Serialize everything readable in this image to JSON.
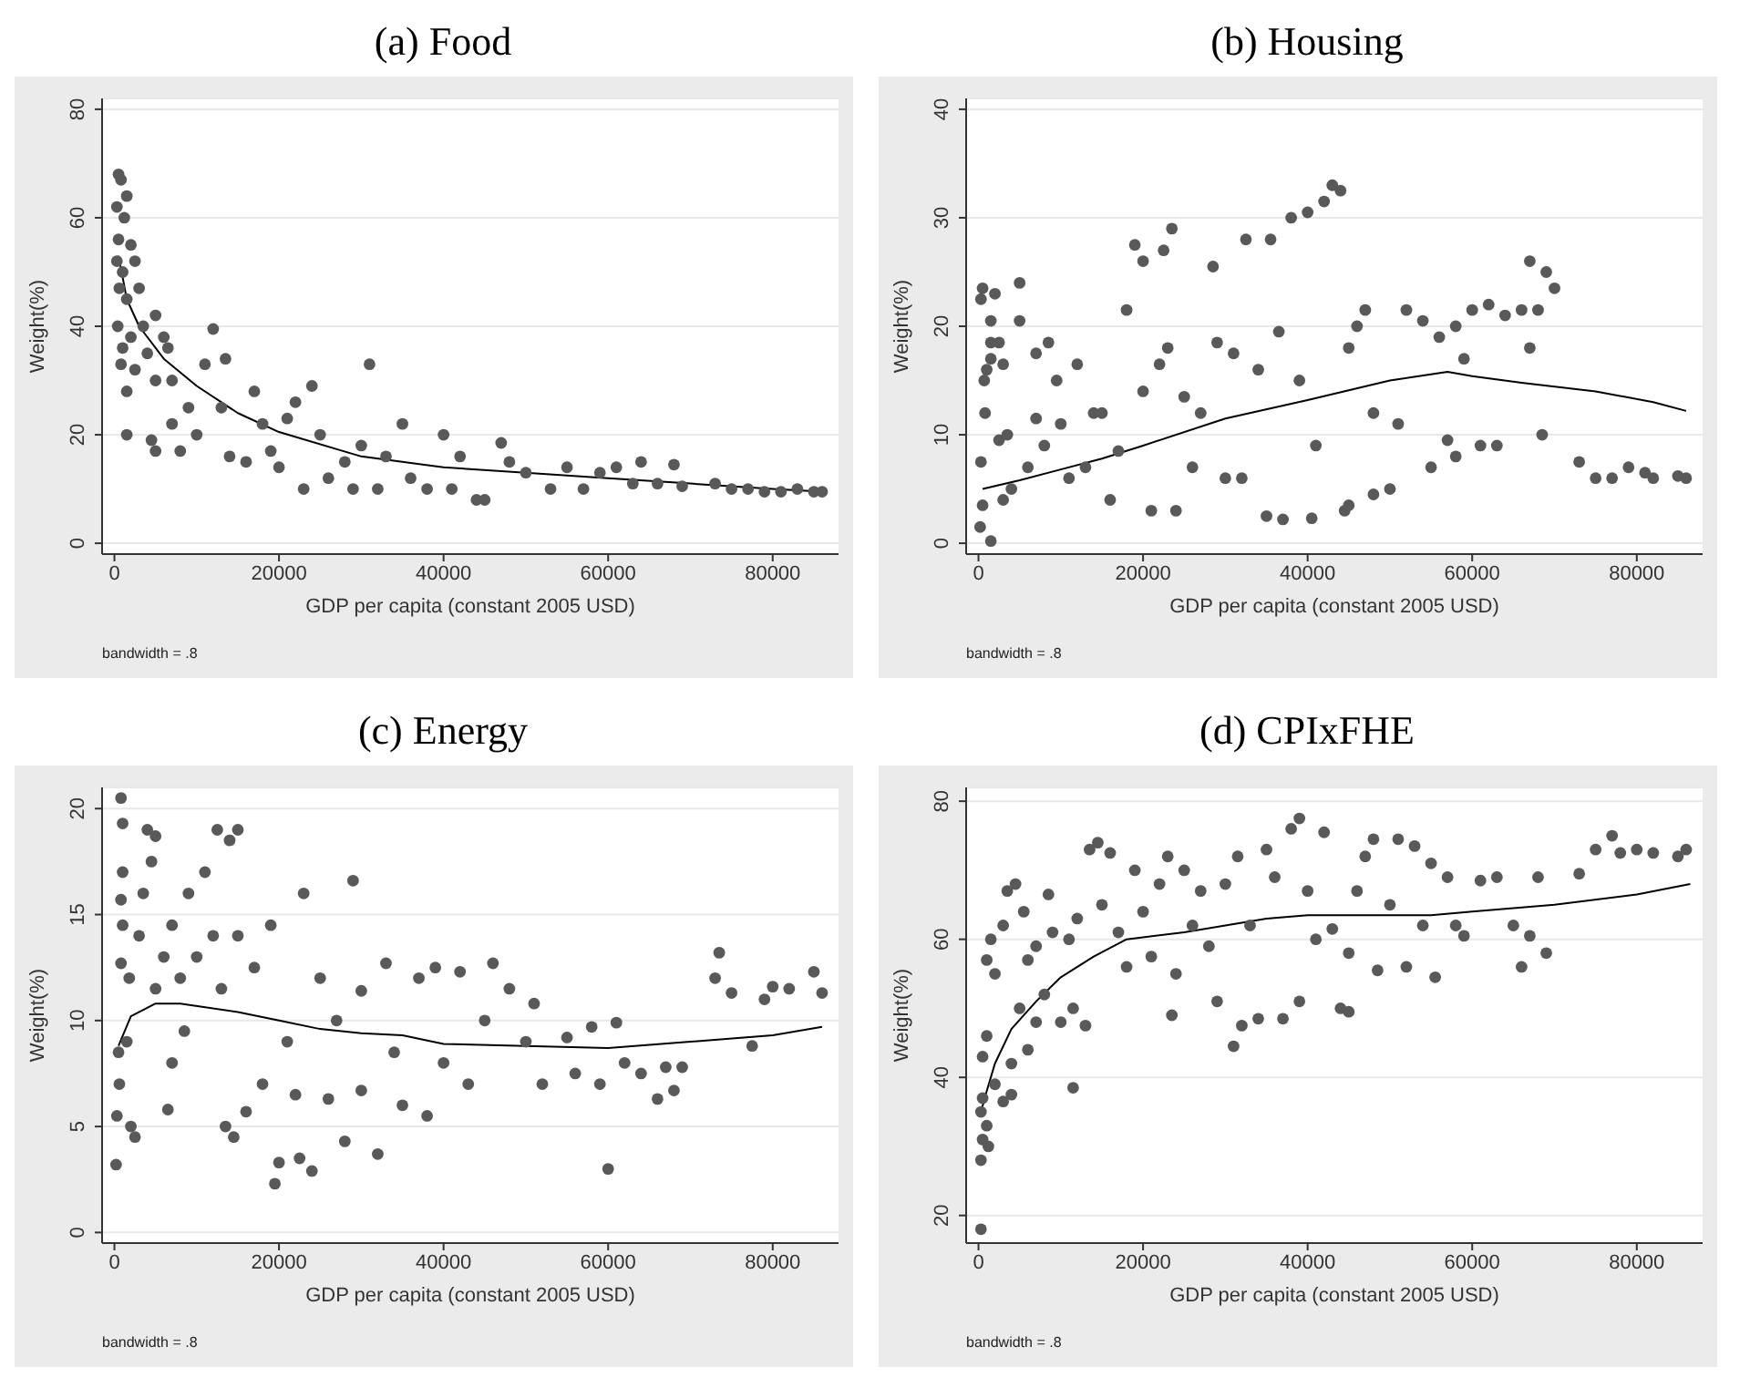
{
  "chart_data": [
    {
      "type": "scatter",
      "title": "(a) Food",
      "xlabel": "GDP per capita (constant 2005 USD)",
      "ylabel": "Weight(%)",
      "xlim": [
        -1500,
        88000
      ],
      "ylim": [
        -2,
        82
      ],
      "xticks": [
        0,
        20000,
        40000,
        60000,
        80000
      ],
      "yticks": [
        0,
        20,
        40,
        60,
        80
      ],
      "grid": "y",
      "annotations": [
        "bandwidth = .8"
      ],
      "series": [
        {
          "type": "scatter",
          "marker": "circle",
          "color": "#595959",
          "x": [
            500,
            800,
            300,
            1500,
            1200,
            500,
            2000,
            300,
            1000,
            2500,
            600,
            1500,
            3000,
            400,
            1000,
            2000,
            800,
            1500,
            1500,
            2500,
            3500,
            4000,
            5000,
            5000,
            6000,
            6500,
            7000,
            4500,
            5000,
            7000,
            8000,
            9000,
            10000,
            11000,
            12000,
            13000,
            13500,
            14000,
            16000,
            17000,
            18000,
            19000,
            20000,
            21000,
            22000,
            23000,
            24000,
            25000,
            26000,
            28000,
            29000,
            30000,
            31000,
            32000,
            33000,
            35000,
            36000,
            38000,
            40000,
            41000,
            42000,
            44000,
            45000,
            47000,
            48000,
            50000,
            53000,
            55000,
            57000,
            59000,
            61000,
            63000,
            64000,
            66000,
            68000,
            69000,
            73000,
            75000,
            77000,
            79000,
            81000,
            83000,
            85000,
            86000
          ],
          "values": [
            68,
            67,
            62,
            64,
            60,
            56,
            55,
            52,
            50,
            52,
            47,
            45,
            47,
            40,
            36,
            38,
            33,
            28,
            20,
            32,
            40,
            35,
            42,
            30,
            38,
            36,
            30,
            19,
            17,
            22,
            17,
            25,
            20,
            33,
            39.5,
            25,
            34,
            16,
            15,
            28,
            22,
            17,
            14,
            23,
            26,
            10,
            29,
            20,
            12,
            15,
            10,
            18,
            33,
            10,
            16,
            22,
            12,
            10,
            20,
            10,
            16,
            8,
            8,
            18.5,
            15,
            13,
            10,
            14,
            10,
            13,
            14,
            11,
            15,
            11,
            14.5,
            10.5,
            11,
            10,
            10,
            9.5,
            9.5,
            10,
            9.5,
            9.5
          ]
        },
        {
          "type": "line",
          "marker": "none",
          "color": "#000000",
          "x": [
            500,
            1500,
            3000,
            6000,
            10000,
            15000,
            20000,
            30000,
            40000,
            50000,
            60000,
            70000,
            80000,
            86000
          ],
          "values": [
            53,
            45,
            40,
            34,
            29,
            24,
            20.5,
            16,
            14,
            13,
            12,
            11,
            10,
            9.5
          ]
        }
      ]
    },
    {
      "type": "scatter",
      "title": "(b) Housing",
      "xlabel": "GDP per capita (constant 2005 USD)",
      "ylabel": "Weight(%)",
      "xlim": [
        -1500,
        88000
      ],
      "ylim": [
        -1,
        41
      ],
      "xticks": [
        0,
        20000,
        40000,
        60000,
        80000
      ],
      "yticks": [
        0,
        10,
        20,
        30,
        40
      ],
      "grid": "y",
      "annotations": [
        "bandwidth = .8"
      ],
      "series": [
        {
          "type": "scatter",
          "marker": "circle",
          "color": "#595959",
          "x": [
            300,
            500,
            300,
            1000,
            700,
            800,
            200,
            500,
            1500,
            1500,
            2000,
            1500,
            1500,
            2500,
            3000,
            3500,
            2500,
            3000,
            4000,
            5000,
            5000,
            6000,
            7000,
            8000,
            7000,
            8500,
            9500,
            10000,
            11000,
            12000,
            13000,
            14000,
            15000,
            16000,
            17000,
            18000,
            19000,
            20000,
            20000,
            21000,
            22000,
            22500,
            23000,
            23500,
            24000,
            25000,
            26000,
            27000,
            28500,
            29000,
            30000,
            31000,
            32000,
            32500,
            34000,
            35000,
            35500,
            37000,
            36500,
            38000,
            39000,
            40000,
            40500,
            41000,
            42000,
            43000,
            44000,
            44500,
            45000,
            45000,
            46000,
            47000,
            48000,
            48000,
            50000,
            51000,
            52000,
            54000,
            55000,
            56000,
            57000,
            58000,
            58000,
            59000,
            60000,
            61000,
            62000,
            63000,
            64000,
            66000,
            67000,
            67000,
            68000,
            68500,
            69000,
            70000,
            73000,
            75000,
            77000,
            79000,
            81000,
            82000,
            85000,
            86000
          ],
          "values": [
            7.5,
            23.5,
            22.5,
            16,
            15,
            12,
            1.5,
            3.5,
            0.2,
            17,
            23,
            18.5,
            20.5,
            18.5,
            16.5,
            10,
            9.5,
            4,
            5,
            24,
            20.5,
            7,
            11.5,
            9,
            17.5,
            18.5,
            15,
            11,
            6,
            16.5,
            7,
            12,
            12,
            4,
            8.5,
            21.5,
            27.5,
            26,
            14,
            3,
            16.5,
            27,
            18,
            29,
            3,
            13.5,
            7,
            12,
            25.5,
            18.5,
            6,
            17.5,
            6,
            28,
            16,
            2.5,
            28,
            2.2,
            19.5,
            30,
            15,
            30.5,
            2.3,
            9,
            31.5,
            33,
            32.5,
            3,
            3.5,
            18,
            20,
            21.5,
            4.5,
            12,
            5,
            11,
            21.5,
            20.5,
            7,
            19,
            9.5,
            20,
            8,
            17,
            21.5,
            9,
            22,
            9,
            21,
            21.5,
            26,
            18,
            21.5,
            10,
            25,
            23.5,
            7.5,
            6,
            6,
            7,
            6.5,
            6,
            6.2,
            6
          ]
        },
        {
          "type": "line",
          "marker": "none",
          "color": "#000000",
          "x": [
            500,
            5000,
            10000,
            15000,
            20000,
            30000,
            40000,
            50000,
            57000,
            60000,
            66000,
            75000,
            82000,
            86000
          ],
          "values": [
            5,
            5.8,
            6.8,
            7.8,
            9,
            11.5,
            13.2,
            15,
            15.8,
            15.4,
            14.8,
            14,
            13,
            12.2
          ]
        }
      ]
    },
    {
      "type": "scatter",
      "title": "(c) Energy",
      "xlabel": "GDP per capita (constant 2005 USD)",
      "ylabel": "Weight(%)",
      "xlim": [
        -1500,
        88000
      ],
      "ylim": [
        -0.5,
        21
      ],
      "xticks": [
        0,
        20000,
        40000,
        60000,
        80000
      ],
      "yticks": [
        0,
        5,
        10,
        15,
        20
      ],
      "grid": "y",
      "annotations": [
        "bandwidth = .8"
      ],
      "series": [
        {
          "type": "scatter",
          "marker": "circle",
          "color": "#595959",
          "x": [
            200,
            300,
            800,
            1000,
            1000,
            800,
            1000,
            800,
            500,
            600,
            1500,
            2000,
            2500,
            1800,
            3000,
            4000,
            4500,
            5000,
            3500,
            5000,
            6000,
            6500,
            7000,
            7000,
            8000,
            8500,
            9000,
            10000,
            11000,
            12000,
            12500,
            13000,
            13500,
            14000,
            15000,
            15000,
            14500,
            16000,
            17000,
            18000,
            19000,
            19500,
            20000,
            21000,
            22000,
            22500,
            23000,
            24000,
            25000,
            26000,
            27000,
            28000,
            29000,
            30000,
            30000,
            32000,
            33000,
            34000,
            35000,
            37000,
            38000,
            39000,
            40000,
            42000,
            43000,
            45000,
            46000,
            48000,
            50000,
            51000,
            52000,
            55000,
            56000,
            58000,
            59000,
            60000,
            61000,
            62000,
            64000,
            66000,
            67000,
            68000,
            69000,
            73000,
            73500,
            75000,
            77500,
            79000,
            80000,
            82000,
            85000,
            86000
          ],
          "values": [
            3.2,
            5.5,
            20.5,
            19.3,
            17,
            15.7,
            14.5,
            12.7,
            8.5,
            7,
            9,
            5,
            4.5,
            12,
            14,
            19,
            17.5,
            18.7,
            16,
            11.5,
            13,
            5.8,
            8,
            14.5,
            12,
            9.5,
            16,
            13,
            17,
            14,
            19,
            11.5,
            5,
            18.5,
            19,
            14,
            4.5,
            5.7,
            12.5,
            7,
            14.5,
            2.3,
            3.3,
            9,
            6.5,
            3.5,
            16,
            2.9,
            12,
            6.3,
            10,
            4.3,
            16.6,
            11.4,
            6.7,
            3.7,
            12.7,
            8.5,
            6,
            12,
            5.5,
            12.5,
            8,
            12.3,
            7,
            10,
            12.7,
            11.5,
            9,
            10.8,
            7,
            9.2,
            7.5,
            9.7,
            7,
            3,
            9.9,
            8,
            7.5,
            6.3,
            7.8,
            6.7,
            7.8,
            12,
            13.2,
            11.3,
            8.8,
            11,
            11.6,
            11.5,
            12.3,
            11.3
          ]
        },
        {
          "type": "line",
          "marker": "none",
          "color": "#000000",
          "x": [
            500,
            2000,
            5000,
            8000,
            15000,
            20000,
            25000,
            30000,
            35000,
            40000,
            50000,
            60000,
            70000,
            80000,
            86000
          ],
          "values": [
            8.8,
            10.2,
            10.8,
            10.8,
            10.4,
            10,
            9.6,
            9.4,
            9.3,
            8.9,
            8.8,
            8.7,
            9,
            9.3,
            9.7
          ]
        }
      ]
    },
    {
      "type": "scatter",
      "title": "(d) CPIxFHE",
      "xlabel": "GDP per capita (constant 2005 USD)",
      "ylabel": "Weight(%)",
      "xlim": [
        -1500,
        88000
      ],
      "ylim": [
        16,
        82
      ],
      "xticks": [
        0,
        20000,
        40000,
        60000,
        80000
      ],
      "yticks": [
        20,
        40,
        60,
        80
      ],
      "grid": "y",
      "annotations": [
        "bandwidth = .8"
      ],
      "series": [
        {
          "type": "scatter",
          "marker": "circle",
          "color": "#595959",
          "x": [
            300,
            300,
            500,
            300,
            1000,
            1200,
            500,
            500,
            1000,
            1000,
            1500,
            2000,
            2000,
            3000,
            3000,
            3500,
            4000,
            4000,
            4500,
            5000,
            5500,
            6000,
            6000,
            7000,
            7000,
            8000,
            8500,
            9000,
            10000,
            11000,
            11500,
            11500,
            12000,
            13000,
            13500,
            14500,
            15000,
            16000,
            17000,
            18000,
            19000,
            20000,
            21000,
            22000,
            23000,
            23500,
            24000,
            25000,
            26000,
            27000,
            28000,
            29000,
            30000,
            31000,
            31500,
            32000,
            33000,
            34000,
            35000,
            36000,
            37000,
            38000,
            39000,
            39000,
            40000,
            41000,
            42000,
            43000,
            44000,
            45000,
            45000,
            46000,
            47000,
            48000,
            48500,
            50000,
            51000,
            52000,
            53000,
            54000,
            55000,
            55500,
            57000,
            58000,
            59000,
            61000,
            63000,
            65000,
            66000,
            67000,
            68000,
            69000,
            73000,
            75000,
            77000,
            78000,
            80000,
            82000,
            85000,
            86000
          ],
          "values": [
            18,
            28,
            31,
            35,
            33,
            30,
            37,
            43,
            46,
            57,
            60,
            55,
            39,
            36.5,
            62,
            67,
            42,
            37.5,
            68,
            50,
            64,
            44,
            57,
            48,
            59,
            52,
            66.5,
            61,
            48,
            60,
            38.5,
            50,
            63,
            47.5,
            73,
            74,
            65,
            72.5,
            61,
            56,
            70,
            64,
            57.5,
            68,
            72,
            49,
            55,
            70,
            62,
            67,
            59,
            51,
            68,
            44.5,
            72,
            47.5,
            62,
            48.5,
            73,
            69,
            48.5,
            76,
            77.5,
            51,
            67,
            60,
            75.5,
            61.5,
            50,
            49.5,
            58,
            67,
            72,
            74.5,
            55.5,
            65,
            74.5,
            56,
            73.5,
            62,
            71,
            54.5,
            69,
            62,
            60.5,
            68.5,
            69,
            62,
            56,
            60.5,
            69,
            58,
            69.5,
            73,
            75,
            72.5,
            73,
            72.5,
            72,
            73
          ]
        },
        {
          "type": "line",
          "marker": "none",
          "color": "#000000",
          "x": [
            300,
            1000,
            2000,
            4000,
            7000,
            10000,
            14000,
            18000,
            25000,
            30000,
            35000,
            40000,
            50000,
            55000,
            60000,
            70000,
            80000,
            86500
          ],
          "values": [
            35,
            38,
            42,
            47,
            51,
            54.5,
            57.5,
            60,
            61,
            62,
            63,
            63.5,
            63.5,
            63.5,
            64,
            65,
            66.5,
            68
          ]
        }
      ]
    }
  ]
}
